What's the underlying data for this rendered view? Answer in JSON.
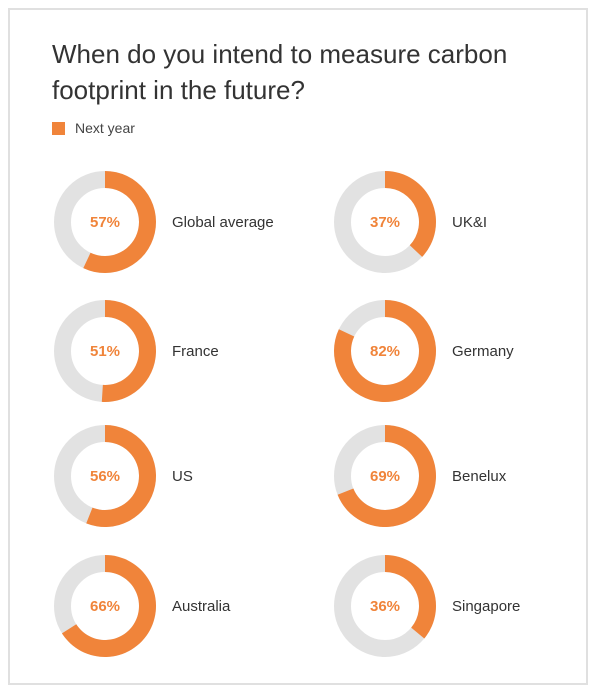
{
  "colors": {
    "accent": "#f0843a",
    "track": "#e2e2e2",
    "title": "#333333"
  },
  "chart_data": {
    "type": "pie",
    "subtype": "donut",
    "title": "When do you intend to measure carbon footprint in the future?",
    "legend": [
      {
        "label": "Next year",
        "color": "#f0843a"
      }
    ],
    "legend_position": "top-left",
    "categories": [
      "Global average",
      "UK&I",
      "France",
      "Germany",
      "US",
      "Benelux",
      "Australia",
      "Singapore"
    ],
    "values": [
      57,
      37,
      51,
      82,
      56,
      69,
      66,
      36
    ],
    "value_labels": [
      "57%",
      "37%",
      "51%",
      "82%",
      "56%",
      "69%",
      "66%",
      "36%"
    ],
    "unit": "%"
  }
}
